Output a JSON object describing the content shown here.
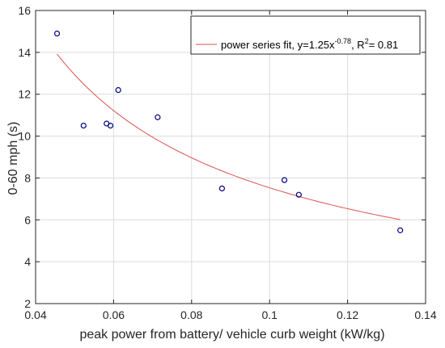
{
  "colors": {
    "background": "#ffffff",
    "axes": "#262626",
    "grid": "#dcdcdc",
    "marker": "#00007f",
    "fit_line": "#d9534f"
  },
  "chart_data": {
    "type": "scatter",
    "title": "",
    "xlabel": "peak power from battery/ vehicle curb weight (kW/kg)",
    "ylabel": "0-60 mph (s)",
    "xlim": [
      0.04,
      0.14
    ],
    "ylim": [
      2,
      16
    ],
    "x_ticks": [
      0.04,
      0.06,
      0.08,
      0.1,
      0.12,
      0.14
    ],
    "x_tick_labels": [
      "0.04",
      "0.06",
      "0.08",
      "0.1",
      "0.12",
      "0.14"
    ],
    "y_ticks": [
      2,
      4,
      6,
      8,
      10,
      12,
      14,
      16
    ],
    "y_tick_labels": [
      "2",
      "4",
      "6",
      "8",
      "10",
      "12",
      "14",
      "16"
    ],
    "grid": true,
    "legend_position": "top-right",
    "series": [
      {
        "kind": "scatter",
        "marker": "open-circle",
        "points": [
          {
            "x": 0.0455,
            "y": 14.9
          },
          {
            "x": 0.0523,
            "y": 10.5
          },
          {
            "x": 0.0582,
            "y": 10.6
          },
          {
            "x": 0.0592,
            "y": 10.5
          },
          {
            "x": 0.0612,
            "y": 12.2
          },
          {
            "x": 0.0713,
            "y": 10.9
          },
          {
            "x": 0.0878,
            "y": 7.5
          },
          {
            "x": 0.1038,
            "y": 7.9
          },
          {
            "x": 0.1075,
            "y": 7.2
          },
          {
            "x": 0.1335,
            "y": 5.5
          }
        ]
      },
      {
        "kind": "fit-curve",
        "name_parts": {
          "prefix": "power series fit, y=1.25x",
          "exponent": "-0.78",
          "middle": ", R",
          "r_exponent": "2",
          "suffix": "= 0.81"
        },
        "coefficient": 1.25,
        "power": -0.78,
        "x_range": [
          0.0455,
          0.1335
        ]
      }
    ]
  }
}
